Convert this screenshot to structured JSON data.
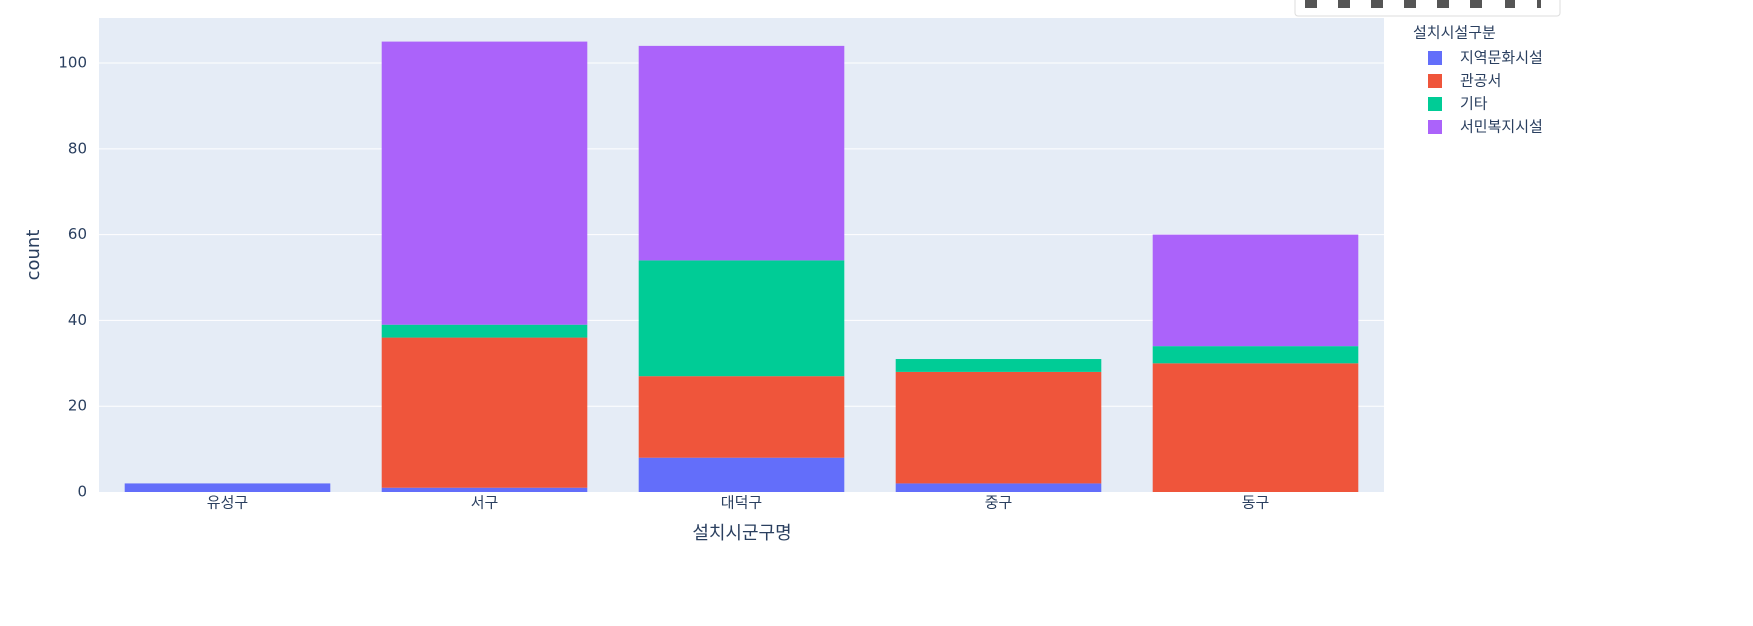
{
  "chart_data": {
    "type": "stacked-bar",
    "categories": [
      "유성구",
      "서구",
      "대덕구",
      "중구",
      "동구"
    ],
    "series": [
      {
        "name": "지역문화시설",
        "color": "#636efa",
        "values": [
          2,
          1,
          8,
          2,
          0
        ]
      },
      {
        "name": "관공서",
        "color": "#ef553b",
        "values": [
          0,
          35,
          19,
          26,
          30
        ]
      },
      {
        "name": "기타",
        "color": "#00cc96",
        "values": [
          0,
          3,
          27,
          3,
          4
        ]
      },
      {
        "name": "서민복지시설",
        "color": "#ab63fa",
        "values": [
          0,
          66,
          50,
          0,
          26
        ]
      }
    ],
    "xlabel": "설치시군구명",
    "ylabel": "count",
    "legend_title": "설치시설구분",
    "ylim": [
      0,
      110.5
    ],
    "yticks": [
      0,
      20,
      40,
      60,
      80,
      100
    ],
    "grid": true,
    "legend": "right"
  }
}
